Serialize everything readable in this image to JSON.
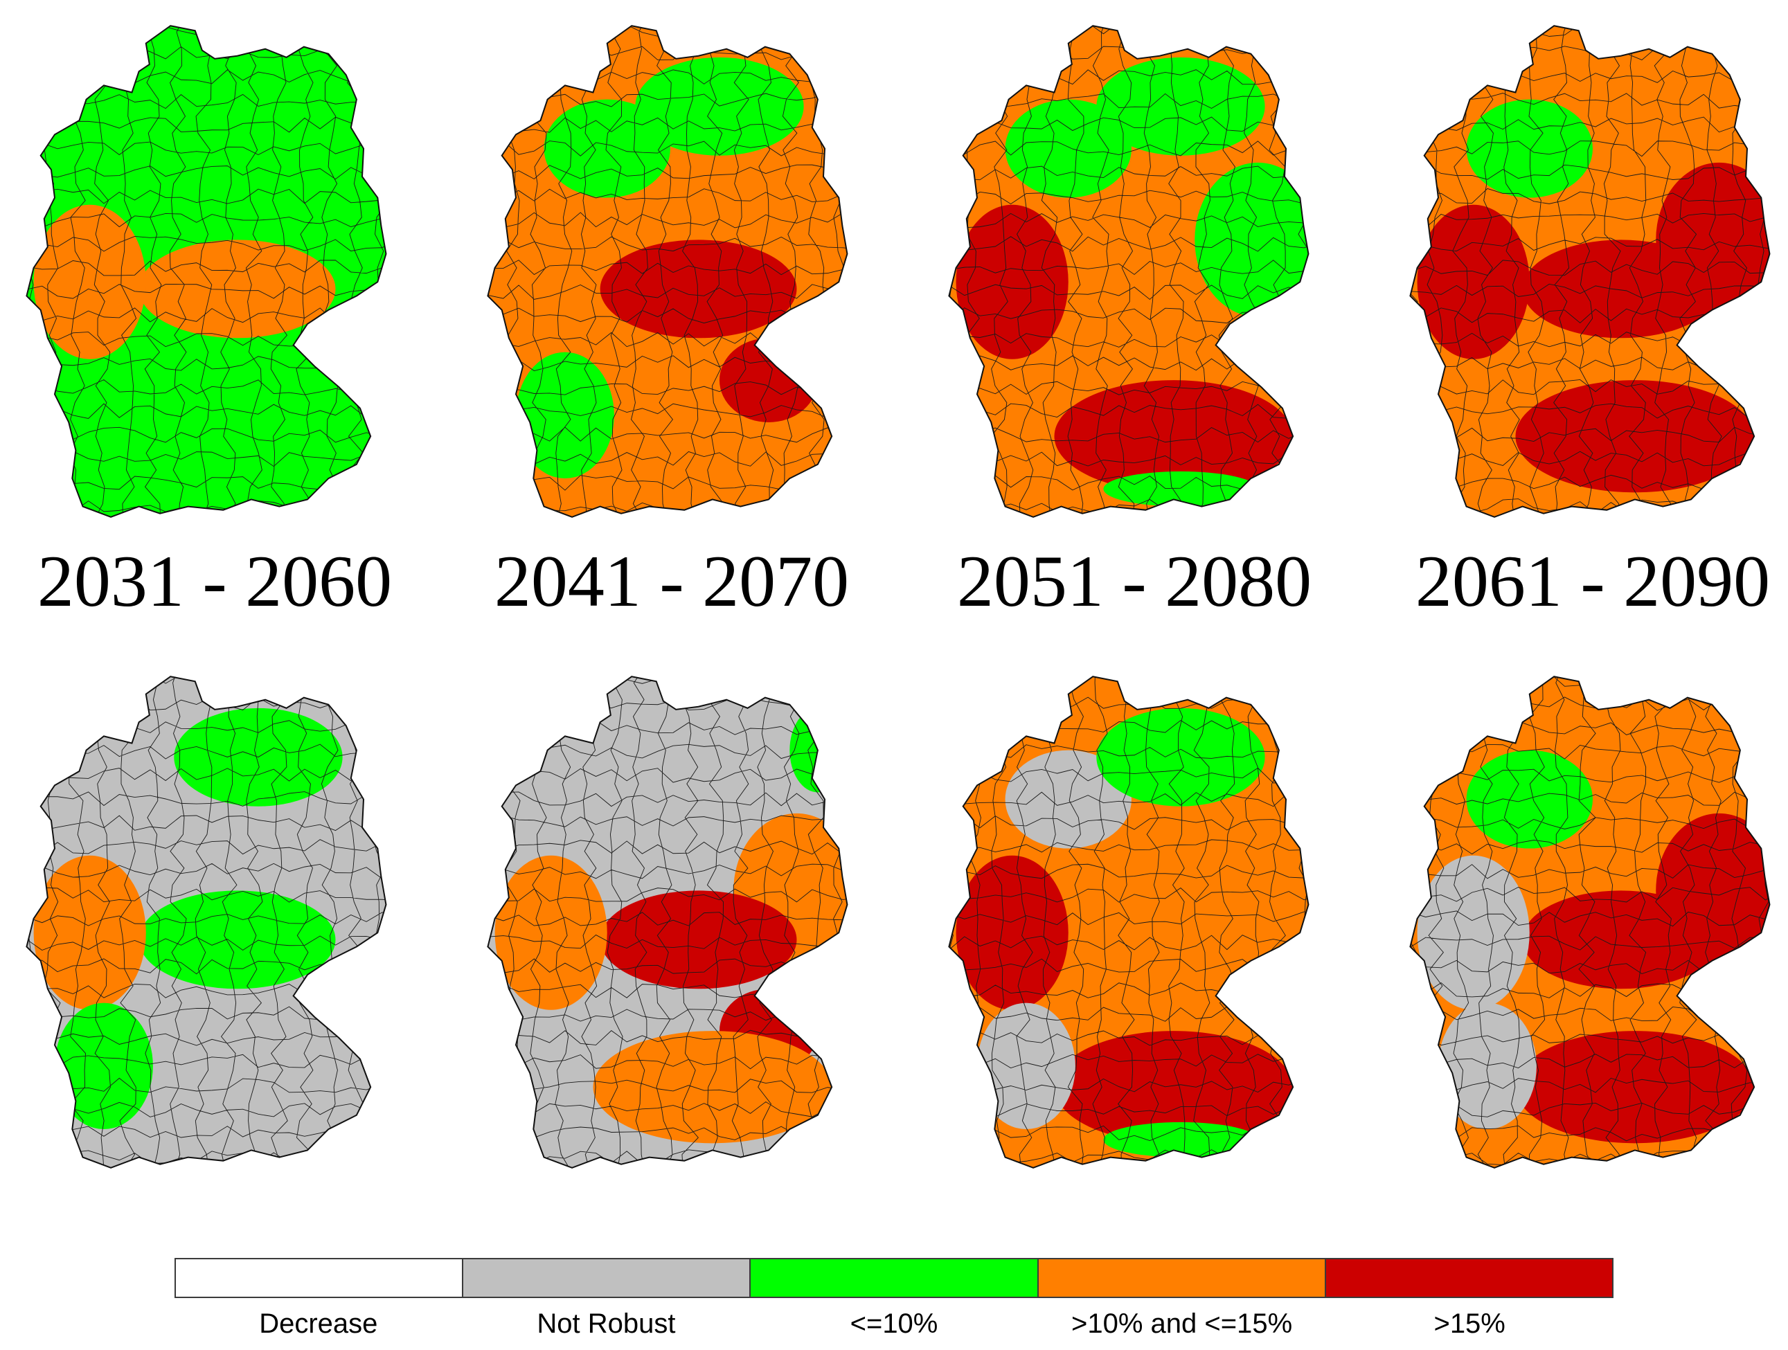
{
  "periods": [
    "2031 - 2060",
    "2041 - 2070",
    "2051 - 2080",
    "2061 - 2090"
  ],
  "categories": [
    {
      "key": "decrease",
      "label": "Decrease",
      "color": "#ffffff"
    },
    {
      "key": "not_robust",
      "label": "Not Robust",
      "color": "#c0c0c0"
    },
    {
      "key": "le10",
      "label": "<=10%",
      "color": "#00ff00"
    },
    {
      "key": "gt10_le15",
      "label": ">10% and <=15%",
      "color": "#ff7f00"
    },
    {
      "key": "gt15",
      "label": ">15%",
      "color": "#cc0000"
    }
  ],
  "map_rows": [
    {
      "row": "all",
      "maps": [
        {
          "period": "2031 - 2060",
          "base": "le10",
          "regions": [
            [
              "center",
              "gt10_le15"
            ],
            [
              "west",
              "gt10_le15"
            ],
            [
              "south",
              "le10"
            ]
          ]
        },
        {
          "period": "2041 - 2070",
          "base": "gt10_le15",
          "regions": [
            [
              "northwest",
              "le10"
            ],
            [
              "north",
              "le10"
            ],
            [
              "center",
              "gt15"
            ],
            [
              "southeast",
              "gt15"
            ],
            [
              "southwest",
              "le10"
            ]
          ]
        },
        {
          "period": "2051 - 2080",
          "base": "gt10_le15",
          "regions": [
            [
              "northwest",
              "le10"
            ],
            [
              "north",
              "le10"
            ],
            [
              "east",
              "le10"
            ],
            [
              "south",
              "gt15"
            ],
            [
              "west",
              "gt15"
            ],
            [
              "alps",
              "le10"
            ]
          ]
        },
        {
          "period": "2061 - 2090",
          "base": "gt10_le15",
          "regions": [
            [
              "northwest",
              "le10"
            ],
            [
              "center",
              "gt15"
            ],
            [
              "east",
              "gt15"
            ],
            [
              "south",
              "gt15"
            ],
            [
              "west",
              "gt15"
            ]
          ]
        }
      ]
    },
    {
      "row": "robust",
      "maps": [
        {
          "period": "2031 - 2060",
          "base": "not_robust",
          "regions": [
            [
              "north",
              "le10"
            ],
            [
              "center",
              "le10"
            ],
            [
              "west",
              "gt10_le15"
            ],
            [
              "southwest",
              "le10"
            ]
          ]
        },
        {
          "period": "2041 - 2070",
          "base": "not_robust",
          "regions": [
            [
              "east",
              "gt10_le15"
            ],
            [
              "center",
              "gt15"
            ],
            [
              "west",
              "gt10_le15"
            ],
            [
              "southeast",
              "gt15"
            ],
            [
              "south",
              "gt10_le15"
            ],
            [
              "northeast",
              "le10"
            ]
          ]
        },
        {
          "period": "2051 - 2080",
          "base": "gt10_le15",
          "regions": [
            [
              "northwest",
              "not_robust"
            ],
            [
              "north",
              "le10"
            ],
            [
              "south",
              "gt15"
            ],
            [
              "west",
              "gt15"
            ],
            [
              "southwest",
              "not_robust"
            ],
            [
              "alps",
              "le10"
            ]
          ]
        },
        {
          "period": "2061 - 2090",
          "base": "gt10_le15",
          "regions": [
            [
              "northwest",
              "le10"
            ],
            [
              "center",
              "gt15"
            ],
            [
              "east",
              "gt15"
            ],
            [
              "south",
              "gt15"
            ],
            [
              "west",
              "not_robust"
            ],
            [
              "southwest",
              "not_robust"
            ]
          ]
        }
      ]
    }
  ]
}
